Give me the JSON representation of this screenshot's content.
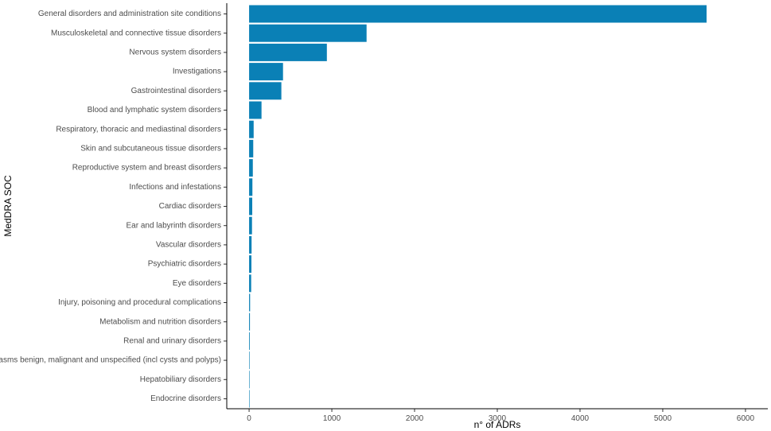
{
  "chart_data": {
    "type": "bar",
    "orientation": "horizontal",
    "xlabel": "n° of ADRs",
    "ylabel": "MedDRA SOC",
    "xlim": [
      -270,
      6270
    ],
    "xticks": [
      0,
      1000,
      2000,
      3000,
      4000,
      5000,
      6000
    ],
    "grid": false,
    "bar_color": "#0a80b6",
    "categories": [
      "General disorders and administration site conditions",
      "Musculoskeletal and connective tissue disorders",
      "Nervous system disorders",
      "Investigations",
      "Gastrointestinal disorders",
      "Blood and lymphatic system disorders",
      "Respiratory, thoracic and mediastinal disorders",
      "Skin and subcutaneous tissue disorders",
      "Reproductive system and breast disorders",
      "Infections and infestations",
      "Cardiac disorders",
      "Ear and labyrinth disorders",
      "Vascular disorders",
      "Psychiatric disorders",
      "Eye disorders",
      "Injury, poisoning and procedural complications",
      "Metabolism and nutrition disorders",
      "Renal and urinary disorders",
      "Neoplasms benign, malignant and unspecified (incl cysts and polyps)",
      "Hepatobiliary disorders",
      "Endocrine disorders"
    ],
    "values": [
      5530,
      1420,
      940,
      410,
      390,
      150,
      55,
      50,
      45,
      40,
      38,
      35,
      30,
      28,
      25,
      12,
      10,
      8,
      6,
      5,
      3
    ]
  }
}
